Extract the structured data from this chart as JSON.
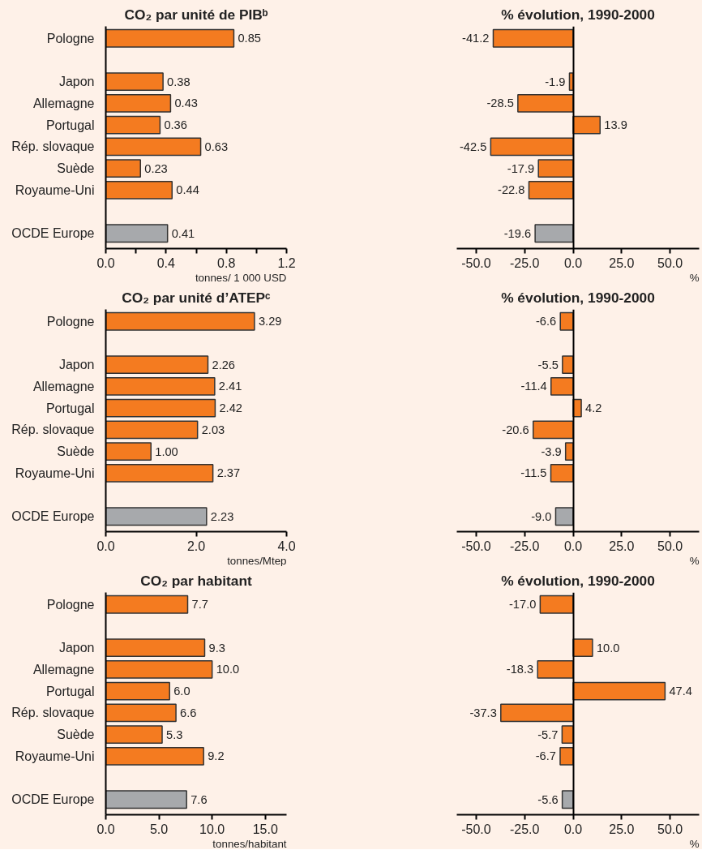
{
  "chart_data": [
    {
      "type": "bar",
      "orientation": "horizontal",
      "title": "CO₂ par unité de PIBᵇ",
      "xlabel": "tonnes/ 1 000 USD",
      "categories": [
        "Pologne",
        null,
        "Japon",
        "Allemagne",
        "Portugal",
        "Rép. slovaque",
        "Suède",
        "Royaume-Uni",
        null,
        "OCDE Europe"
      ],
      "values": [
        0.85,
        null,
        0.38,
        0.43,
        0.36,
        0.63,
        0.23,
        0.44,
        null,
        0.41
      ],
      "value_labels": [
        "0.85",
        null,
        "0.38",
        "0.43",
        "0.36",
        "0.63",
        "0.23",
        "0.44",
        null,
        "0.41"
      ],
      "colors": [
        "#f47b20",
        null,
        "#f47b20",
        "#f47b20",
        "#f47b20",
        "#f47b20",
        "#f47b20",
        "#f47b20",
        null,
        "#a7a9ac"
      ],
      "xlim": [
        0,
        1.2
      ],
      "xticks": [
        {
          "value": 0,
          "label": "0.0"
        },
        {
          "value": 0.2,
          "label": null
        },
        {
          "value": 0.4,
          "label": "0.4"
        },
        {
          "value": 0.6,
          "label": null
        },
        {
          "value": 0.8,
          "label": "0.8"
        },
        {
          "value": 1.0,
          "label": null
        },
        {
          "value": 1.2,
          "label": "1.2"
        }
      ]
    },
    {
      "type": "bar",
      "orientation": "horizontal",
      "title": "% évolution, 1990-2000",
      "xlabel": "%",
      "categories": [
        null,
        null,
        null,
        null,
        null,
        null,
        null,
        null,
        null,
        null
      ],
      "values": [
        -41.2,
        null,
        -1.9,
        -28.5,
        13.9,
        -42.5,
        -17.9,
        -22.8,
        null,
        -19.6
      ],
      "value_labels": [
        "-41.2",
        null,
        "-1.9",
        "-28.5",
        "13.9",
        "-42.5",
        "-17.9",
        "-22.8",
        null,
        "-19.6"
      ],
      "colors": [
        "#f47b20",
        null,
        "#f47b20",
        "#f47b20",
        "#f47b20",
        "#f47b20",
        "#f47b20",
        "#f47b20",
        null,
        "#a7a9ac"
      ],
      "xlim": [
        -60,
        65
      ],
      "xticks": [
        {
          "value": -50,
          "label": "-50.0"
        },
        {
          "value": -25,
          "label": "-25.0"
        },
        {
          "value": 0,
          "label": "0.0"
        },
        {
          "value": 25,
          "label": "25.0"
        },
        {
          "value": 50,
          "label": "50.0"
        }
      ],
      "tick_labels": "x"
    },
    {
      "type": "bar",
      "orientation": "horizontal",
      "title": "CO₂ par unité d’ATEPᶜ",
      "xlabel": "tonnes/Mtep",
      "categories": [
        "Pologne",
        null,
        "Japon",
        "Allemagne",
        "Portugal",
        "Rép. slovaque",
        "Suède",
        "Royaume-Uni",
        null,
        "OCDE Europe"
      ],
      "values": [
        3.29,
        null,
        2.26,
        2.41,
        2.42,
        2.03,
        1.0,
        2.37,
        null,
        2.23
      ],
      "value_labels": [
        "3.29",
        null,
        "2.26",
        "2.41",
        "2.42",
        "2.03",
        "1.00",
        "2.37",
        null,
        "2.23"
      ],
      "colors": [
        "#f47b20",
        null,
        "#f47b20",
        "#f47b20",
        "#f47b20",
        "#f47b20",
        "#f47b20",
        "#f47b20",
        null,
        "#a7a9ac"
      ],
      "xlim": [
        0,
        4
      ],
      "xticks": [
        {
          "value": 0,
          "label": "0.0"
        },
        {
          "value": 2,
          "label": "2.0"
        },
        {
          "value": 4,
          "label": "4.0"
        }
      ]
    },
    {
      "type": "bar",
      "orientation": "horizontal",
      "title": "% évolution, 1990-2000",
      "xlabel": "%",
      "categories": [
        null,
        null,
        null,
        null,
        null,
        null,
        null,
        null,
        null,
        null
      ],
      "values": [
        -6.6,
        null,
        -5.5,
        -11.4,
        4.2,
        -20.6,
        -3.9,
        -11.5,
        null,
        -9.0
      ],
      "value_labels": [
        "-6.6",
        null,
        "-5.5",
        "-11.4",
        "4.2",
        "-20.6",
        "-3.9",
        "-11.5",
        null,
        "-9.0"
      ],
      "colors": [
        "#f47b20",
        null,
        "#f47b20",
        "#f47b20",
        "#f47b20",
        "#f47b20",
        "#f47b20",
        "#f47b20",
        null,
        "#a7a9ac"
      ],
      "xlim": [
        -60,
        65
      ],
      "xticks": [
        {
          "value": -50,
          "label": "-50.0"
        },
        {
          "value": -25,
          "label": "-25.0"
        },
        {
          "value": 0,
          "label": "0.0"
        },
        {
          "value": 25,
          "label": "25.0"
        },
        {
          "value": 50,
          "label": "50.0"
        }
      ],
      "tick_labels": "x"
    },
    {
      "type": "bar",
      "orientation": "horizontal",
      "title": "CO₂ par habitant",
      "xlabel": "tonnes/habitant",
      "categories": [
        "Pologne",
        null,
        "Japon",
        "Allemagne",
        "Portugal",
        "Rép. slovaque",
        "Suède",
        "Royaume-Uni",
        null,
        "OCDE Europe"
      ],
      "values": [
        7.7,
        null,
        9.3,
        10.0,
        6.0,
        6.6,
        5.3,
        9.2,
        null,
        7.6
      ],
      "value_labels": [
        "7.7",
        null,
        "9.3",
        "10.0",
        "6.0",
        "6.6",
        "5.3",
        "9.2",
        null,
        "7.6"
      ],
      "colors": [
        "#f47b20",
        null,
        "#f47b20",
        "#f47b20",
        "#f47b20",
        "#f47b20",
        "#f47b20",
        "#f47b20",
        null,
        "#a7a9ac"
      ],
      "xlim": [
        0,
        17
      ],
      "xticks": [
        {
          "value": 0,
          "label": "0.0"
        },
        {
          "value": 5,
          "label": "5.0"
        },
        {
          "value": 10,
          "label": "10.0"
        },
        {
          "value": 15,
          "label": "15.0"
        }
      ]
    },
    {
      "type": "bar",
      "orientation": "horizontal",
      "title": "% évolution, 1990-2000",
      "xlabel": "%",
      "categories": [
        null,
        null,
        null,
        null,
        null,
        null,
        null,
        null,
        null,
        null
      ],
      "values": [
        -17.0,
        null,
        10.0,
        -18.3,
        47.4,
        -37.3,
        -5.7,
        -6.7,
        null,
        -5.6
      ],
      "value_labels": [
        "-17.0",
        null,
        "10.0",
        "-18.3",
        "47.4",
        "-37.3",
        "-5.7",
        "-6.7",
        null,
        "-5.6"
      ],
      "colors": [
        "#f47b20",
        null,
        "#f47b20",
        "#f47b20",
        "#f47b20",
        "#f47b20",
        "#f47b20",
        "#f47b20",
        null,
        "#a7a9ac"
      ],
      "xlim": [
        -60,
        65
      ],
      "xticks": [
        {
          "value": -50,
          "label": "-50.0"
        },
        {
          "value": -25,
          "label": "-25.0"
        },
        {
          "value": 0,
          "label": "0.0"
        },
        {
          "value": 25,
          "label": "25.0"
        },
        {
          "value": 50,
          "label": "50.0"
        }
      ],
      "tick_labels": "x"
    }
  ]
}
